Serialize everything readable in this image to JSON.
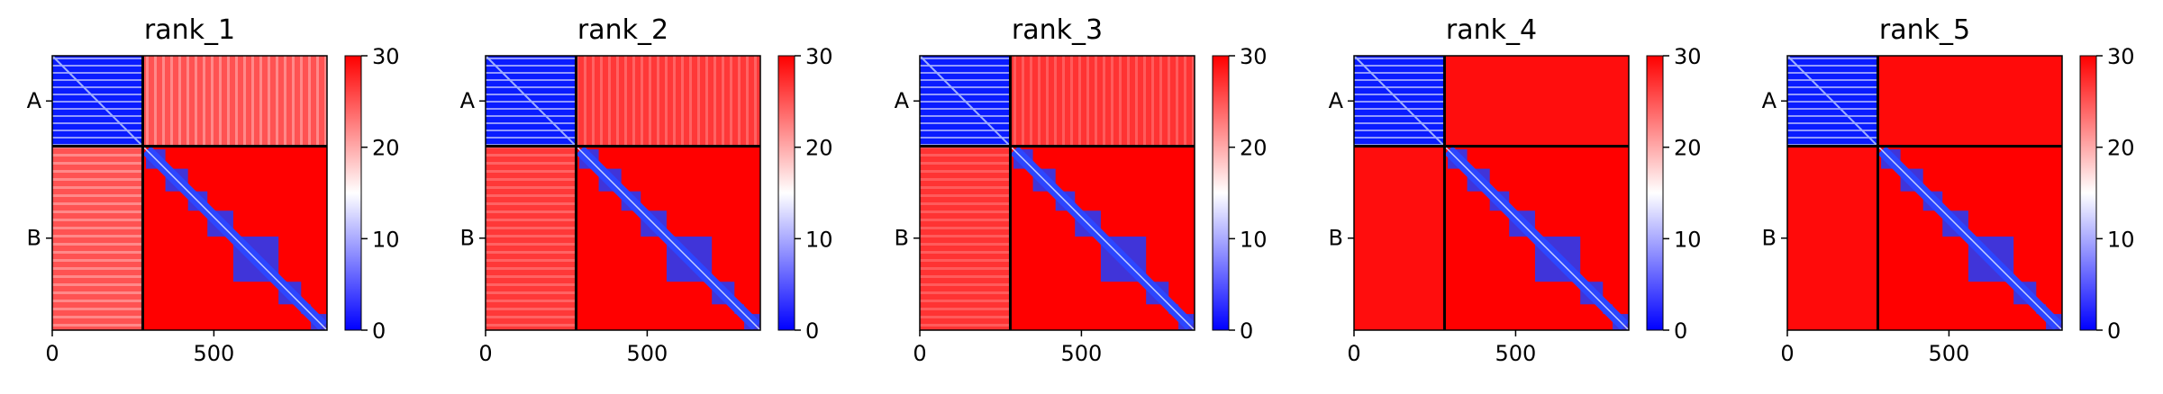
{
  "chart_data": [
    {
      "type": "heatmap",
      "title": "rank_1",
      "xticks": [
        0,
        500
      ],
      "xlim": [
        0,
        850
      ],
      "chain_labels": [
        "A",
        "B"
      ],
      "chain_lengths": [
        280,
        570
      ],
      "colorbar": {
        "min": 0,
        "max": 30,
        "ticks": [
          0,
          10,
          20,
          30
        ],
        "colormap": [
          "#0000ff",
          "#ffffff",
          "#ff0000"
        ]
      },
      "inter_chain_level": 0.68
    },
    {
      "type": "heatmap",
      "title": "rank_2",
      "xticks": [
        0,
        500
      ],
      "xlim": [
        0,
        850
      ],
      "chain_labels": [
        "A",
        "B"
      ],
      "chain_lengths": [
        280,
        570
      ],
      "colorbar": {
        "min": 0,
        "max": 30,
        "ticks": [
          0,
          10,
          20,
          30
        ],
        "colormap": [
          "#0000ff",
          "#ffffff",
          "#ff0000"
        ]
      },
      "inter_chain_level": 0.78
    },
    {
      "type": "heatmap",
      "title": "rank_3",
      "xticks": [
        0,
        500
      ],
      "xlim": [
        0,
        850
      ],
      "chain_labels": [
        "A",
        "B"
      ],
      "chain_lengths": [
        280,
        570
      ],
      "colorbar": {
        "min": 0,
        "max": 30,
        "ticks": [
          0,
          10,
          20,
          30
        ],
        "colormap": [
          "#0000ff",
          "#ffffff",
          "#ff0000"
        ]
      },
      "inter_chain_level": 0.8
    },
    {
      "type": "heatmap",
      "title": "rank_4",
      "xticks": [
        0,
        500
      ],
      "xlim": [
        0,
        850
      ],
      "chain_labels": [
        "A",
        "B"
      ],
      "chain_lengths": [
        280,
        570
      ],
      "colorbar": {
        "min": 0,
        "max": 30,
        "ticks": [
          0,
          10,
          20,
          30
        ],
        "colormap": [
          "#0000ff",
          "#ffffff",
          "#ff0000"
        ]
      },
      "inter_chain_level": 0.95
    },
    {
      "type": "heatmap",
      "title": "rank_5",
      "xticks": [
        0,
        500
      ],
      "xlim": [
        0,
        850
      ],
      "chain_labels": [
        "A",
        "B"
      ],
      "chain_lengths": [
        280,
        570
      ],
      "colorbar": {
        "min": 0,
        "max": 30,
        "ticks": [
          0,
          10,
          20,
          30
        ],
        "colormap": [
          "#0000ff",
          "#ffffff",
          "#ff0000"
        ]
      },
      "inter_chain_level": 0.96
    }
  ]
}
